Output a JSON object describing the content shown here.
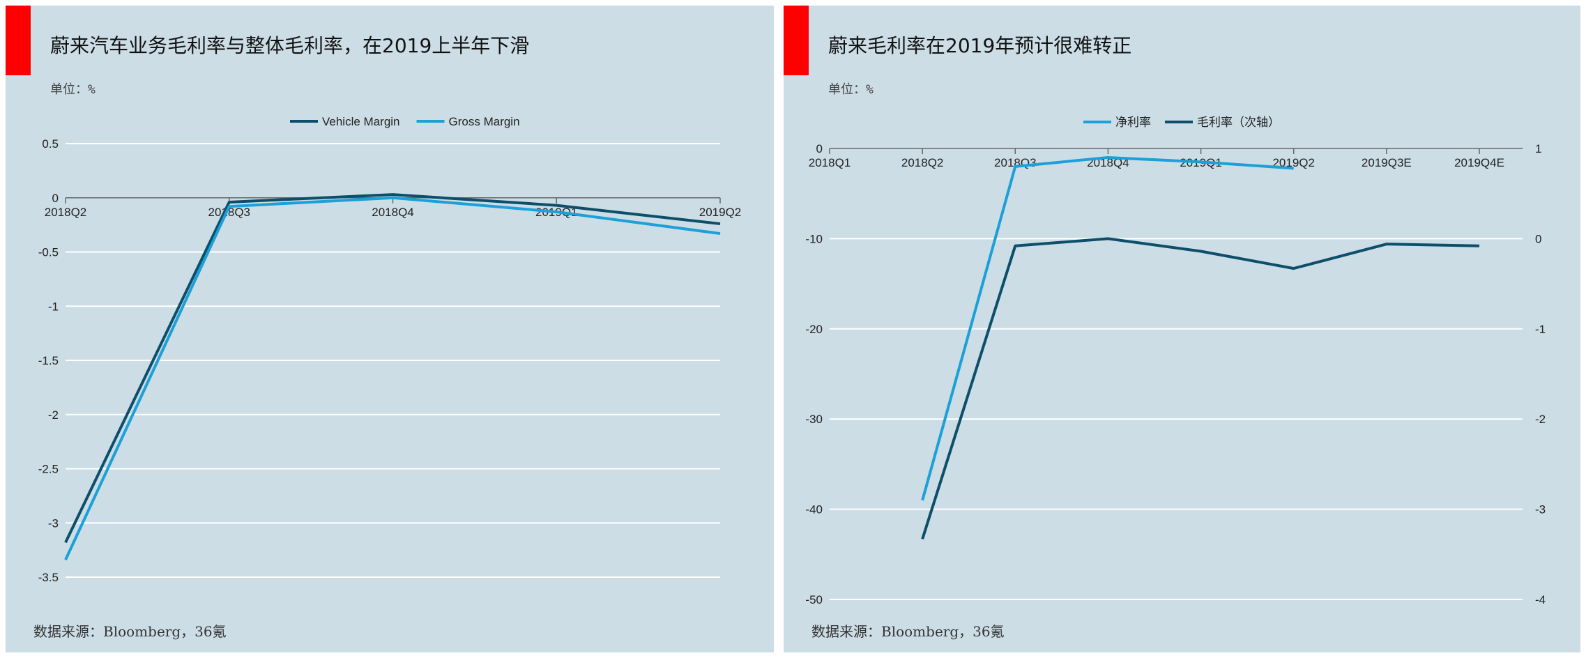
{
  "charts": {
    "left": {
      "title": "蔚来汽车业务毛利率与整体毛利率，在2019上半年下滑",
      "unit": "单位：%",
      "source": "数据来源：Bloomberg，36氪"
    },
    "right": {
      "title": "蔚来毛利率在2019年预计很难转正",
      "unit": "单位：%",
      "source": "数据来源：Bloomberg，36氪"
    }
  },
  "colors": {
    "panel_bg": "#ccdde6",
    "accent_red": "#ff0000",
    "dark_series": "#0d4f6b",
    "light_series": "#1ba0d8"
  },
  "chart_data": [
    {
      "type": "line",
      "categories": [
        "2018Q2",
        "2018Q3",
        "2018Q4",
        "2019Q1",
        "2019Q2"
      ],
      "series": [
        {
          "name": "Vehicle Margin",
          "color": "#0d4f6b",
          "values": [
            -3.18,
            -0.04,
            0.03,
            -0.07,
            -0.24
          ]
        },
        {
          "name": "Gross Margin",
          "color": "#1ba0d8",
          "values": [
            -3.34,
            -0.08,
            0.0,
            -0.13,
            -0.33
          ]
        }
      ],
      "yticks": [
        0.5,
        0,
        -0.5,
        -1,
        -1.5,
        -2,
        -2.5,
        -3,
        -3.5
      ],
      "ylim": [
        -3.5,
        0.5
      ],
      "grid": true,
      "legend": "top-center"
    },
    {
      "type": "line",
      "categories": [
        "2018Q1",
        "2018Q2",
        "2018Q3",
        "2018Q4",
        "2019Q1",
        "2019Q2",
        "2019Q3E",
        "2019Q4E"
      ],
      "series": [
        {
          "name": "净利率",
          "color": "#1ba0d8",
          "axis": "secondary",
          "values": [
            null,
            -2.9,
            0.8,
            0.9,
            0.85,
            0.78,
            null,
            null
          ]
        },
        {
          "name": "毛利率（次轴）",
          "color": "#0d4f6b",
          "axis": "primary",
          "values": [
            null,
            -43.3,
            -10.8,
            -10.0,
            -11.4,
            -13.3,
            -10.6,
            -10.8
          ]
        }
      ],
      "yticks_left": [
        0,
        -10,
        -20,
        -30,
        -40,
        -50
      ],
      "ylim_left": [
        -50,
        0
      ],
      "yticks_right": [
        1,
        0,
        -1,
        -2,
        -3,
        -4
      ],
      "ylim_right": [
        -4,
        1
      ],
      "grid": true,
      "legend": "top-center"
    }
  ]
}
